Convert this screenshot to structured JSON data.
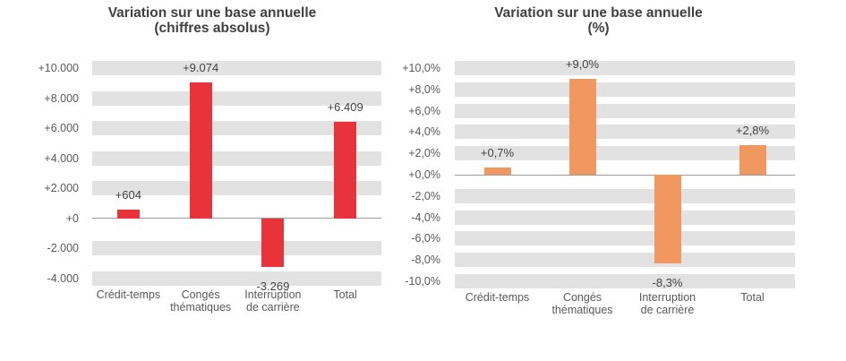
{
  "figure": {
    "background": "#FFFFFF",
    "text_colors": {
      "title": "#404040",
      "tick": "#595959",
      "value_label": "#444444",
      "category": "#595959"
    }
  },
  "chart_data": [
    {
      "type": "bar",
      "title": "Variation sur une base annuelle",
      "subtitle": "(chiffres absolus)",
      "categories": [
        "Crédit-temps",
        "Congés\nthématiques",
        "Interruption\nde carrière",
        "Total"
      ],
      "values": [
        604,
        9074,
        -3269,
        6409
      ],
      "value_labels": [
        "+604",
        "+9.074",
        "-3.269",
        "+6.409"
      ],
      "y_ticks": [
        {
          "value": 10000,
          "label": "+10.000"
        },
        {
          "value": 8000,
          "label": "+8.000"
        },
        {
          "value": 6000,
          "label": "+6.000"
        },
        {
          "value": 4000,
          "label": "+4.000"
        },
        {
          "value": 2000,
          "label": "+2.000"
        },
        {
          "value": 0,
          "label": "+0"
        },
        {
          "value": -2000,
          "label": "-2.000"
        },
        {
          "value": -4000,
          "label": "-4.000"
        }
      ],
      "ylim": [
        -4500,
        10500
      ],
      "xlabel": "",
      "ylabel": "",
      "legend": "none",
      "grid": "striped-bands",
      "bar_color": "#E9333B",
      "stripe_color": "#E2E2E2",
      "axis_line_color": "#9B9B9B"
    },
    {
      "type": "bar",
      "title": "Variation sur une base annuelle",
      "subtitle": "(%)",
      "categories": [
        "Crédit-temps",
        "Congés\nthématiques",
        "Interruption\nde carrière",
        "Total"
      ],
      "values": [
        0.7,
        9.0,
        -8.3,
        2.8
      ],
      "value_labels": [
        "+0,7%",
        "+9,0%",
        "-8,3%",
        "+2,8%"
      ],
      "y_ticks": [
        {
          "value": 10,
          "label": "+10,0%"
        },
        {
          "value": 8,
          "label": "+8,0%"
        },
        {
          "value": 6,
          "label": "+6,0%"
        },
        {
          "value": 4,
          "label": "+4,0%"
        },
        {
          "value": 2,
          "label": "+2,0%"
        },
        {
          "value": 0,
          "label": "+0,0%"
        },
        {
          "value": -2,
          "label": "-2,0%"
        },
        {
          "value": -4,
          "label": "-4,0%"
        },
        {
          "value": -6,
          "label": "-6,0%"
        },
        {
          "value": -8,
          "label": "-8,0%"
        },
        {
          "value": -10,
          "label": "-10,0%"
        }
      ],
      "ylim": [
        -10.67,
        10.67
      ],
      "xlabel": "",
      "ylabel": "",
      "legend": "none",
      "grid": "striped-bands",
      "bar_color": "#F09860",
      "stripe_color": "#E2E2E2",
      "axis_line_color": "#9B9B9B"
    }
  ]
}
